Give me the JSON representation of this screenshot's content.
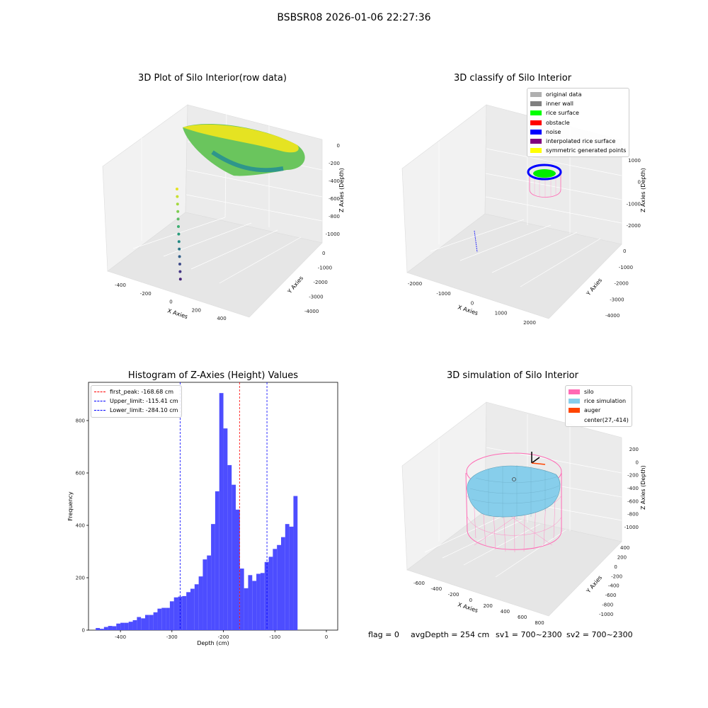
{
  "figure": {
    "suptitle": "BSBSR08 2026-01-06 22:27:36",
    "footer": {
      "flag": "flag = 0",
      "avg": "avgDepth = 254 cm",
      "sv1": "sv1 = 700~2300",
      "sv2": "sv2 = 700~2300"
    }
  },
  "chart_data": [
    {
      "type": "scatter",
      "title": "3D Plot of Silo Interior(row data)",
      "xlabel": "X Axies",
      "ylabel": "Y Axies",
      "zlabel": "Z Axies (Depth)",
      "x_ticks": [
        "-400",
        "-200",
        "0",
        "200",
        "400"
      ],
      "y_ticks": [
        "0",
        "-1000",
        "-2000",
        "-3000",
        "-4000"
      ],
      "z_ticks": [
        "0",
        "-200",
        "-400",
        "-600",
        "-800",
        "-1000"
      ],
      "colormap": "viridis"
    },
    {
      "type": "scatter",
      "title": "3D classify of Silo Interior",
      "xlabel": "X Axies",
      "ylabel": "Y Axies",
      "zlabel": "Z Axies (Depth)",
      "x_ticks": [
        "-2000",
        "-1000",
        "0",
        "1000",
        "2000"
      ],
      "y_ticks": [
        "0",
        "-1000",
        "-2000",
        "-3000",
        "-4000"
      ],
      "z_ticks": [
        "1000",
        "0",
        "-1000",
        "-2000"
      ],
      "legend": [
        {
          "label": "original data",
          "color": "#b0b0b0"
        },
        {
          "label": "inner wall",
          "color": "#808080"
        },
        {
          "label": "rice surface",
          "color": "#00ff00"
        },
        {
          "label": "obstacle",
          "color": "#ff0000"
        },
        {
          "label": "noise",
          "color": "#0000ff"
        },
        {
          "label": "interpolated rice surface",
          "color": "#800080"
        },
        {
          "label": "symmetric generated points",
          "color": "#ffff00"
        }
      ]
    },
    {
      "type": "bar",
      "title": "Histogram of Z-Axies (Height) Values",
      "xlabel": "Depth (cm)",
      "ylabel": "Frequency",
      "xlim": [
        -462,
        22
      ],
      "ylim": [
        0,
        946
      ],
      "x_ticks": [
        -400,
        -300,
        -200,
        -100,
        0
      ],
      "y_ticks": [
        0,
        200,
        400,
        600,
        800
      ],
      "bin_width": 8,
      "bar_color": "#4d4dff",
      "bins": [
        {
          "x": -448,
          "y": 8
        },
        {
          "x": -440,
          "y": 5
        },
        {
          "x": -432,
          "y": 12
        },
        {
          "x": -424,
          "y": 16
        },
        {
          "x": -416,
          "y": 15
        },
        {
          "x": -408,
          "y": 25
        },
        {
          "x": -400,
          "y": 28
        },
        {
          "x": -392,
          "y": 28
        },
        {
          "x": -384,
          "y": 32
        },
        {
          "x": -376,
          "y": 38
        },
        {
          "x": -368,
          "y": 50
        },
        {
          "x": -360,
          "y": 45
        },
        {
          "x": -352,
          "y": 58
        },
        {
          "x": -344,
          "y": 58
        },
        {
          "x": -336,
          "y": 68
        },
        {
          "x": -328,
          "y": 82
        },
        {
          "x": -320,
          "y": 85
        },
        {
          "x": -312,
          "y": 85
        },
        {
          "x": -304,
          "y": 110
        },
        {
          "x": -296,
          "y": 125
        },
        {
          "x": -288,
          "y": 128
        },
        {
          "x": -280,
          "y": 130
        },
        {
          "x": -272,
          "y": 145
        },
        {
          "x": -264,
          "y": 158
        },
        {
          "x": -256,
          "y": 175
        },
        {
          "x": -248,
          "y": 205
        },
        {
          "x": -240,
          "y": 270
        },
        {
          "x": -232,
          "y": 285
        },
        {
          "x": -224,
          "y": 405
        },
        {
          "x": -216,
          "y": 530
        },
        {
          "x": -208,
          "y": 905
        },
        {
          "x": -200,
          "y": 770
        },
        {
          "x": -192,
          "y": 630
        },
        {
          "x": -184,
          "y": 555
        },
        {
          "x": -176,
          "y": 460
        },
        {
          "x": -168,
          "y": 235
        },
        {
          "x": -160,
          "y": 160
        },
        {
          "x": -152,
          "y": 210
        },
        {
          "x": -144,
          "y": 188
        },
        {
          "x": -136,
          "y": 215
        },
        {
          "x": -128,
          "y": 218
        },
        {
          "x": -120,
          "y": 260
        },
        {
          "x": -112,
          "y": 280
        },
        {
          "x": -104,
          "y": 310
        },
        {
          "x": -96,
          "y": 325
        },
        {
          "x": -88,
          "y": 355
        },
        {
          "x": -80,
          "y": 405
        },
        {
          "x": -72,
          "y": 395
        },
        {
          "x": -64,
          "y": 512
        }
      ],
      "vlines": [
        {
          "label": "first_peak: -168.68 cm",
          "x": -168.68,
          "color": "#ff0000"
        },
        {
          "label": "Upper_limit: -115.41 cm",
          "x": -115.41,
          "color": "#0000ff"
        },
        {
          "label": "Lower_limit: -284.10 cm",
          "x": -284.1,
          "color": "#0000ff"
        }
      ],
      "legend_placement": "upper-left"
    },
    {
      "type": "scatter",
      "title": "3D simulation of Silo Interior",
      "xlabel": "X Axies",
      "ylabel": "Y Axies",
      "zlabel": "Z Axies (Depth)",
      "x_ticks": [
        "-600",
        "-400",
        "-200",
        "0",
        "200",
        "400",
        "600",
        "800"
      ],
      "y_ticks": [
        "400",
        "200",
        "0",
        "-200",
        "-400",
        "-600",
        "-800",
        "-1000"
      ],
      "z_ticks": [
        "200",
        "0",
        "-200",
        "-400",
        "-600",
        "-800",
        "-1000"
      ],
      "legend": [
        {
          "label": "silo",
          "color": "#ff69b4"
        },
        {
          "label": "rice simulation",
          "color": "#87ceeb"
        },
        {
          "label": "auger",
          "color": "#ff4500"
        },
        {
          "label": "center(27,-414)",
          "color": ""
        }
      ]
    }
  ]
}
